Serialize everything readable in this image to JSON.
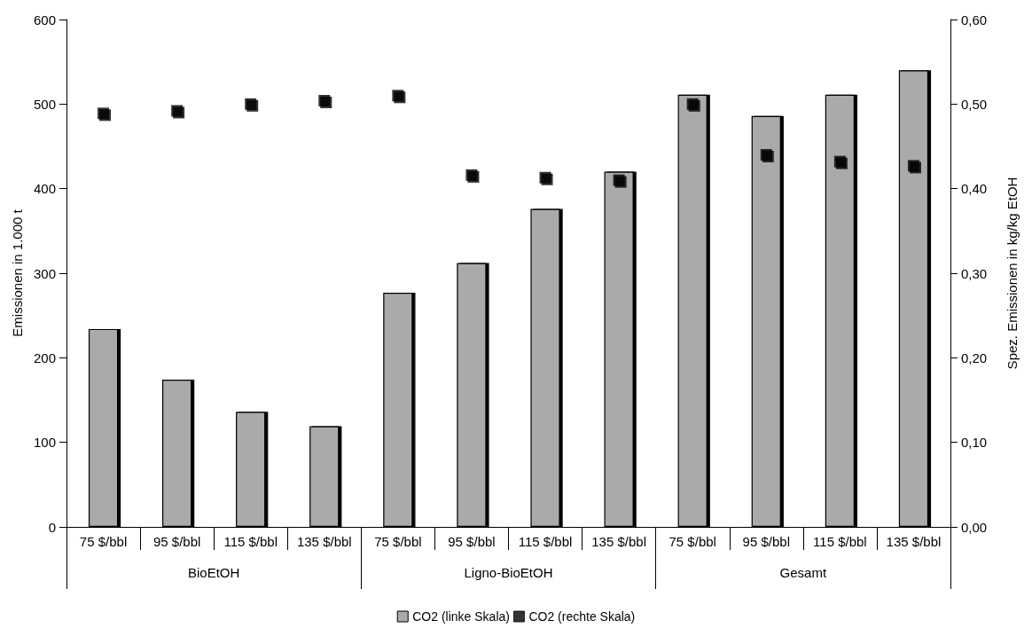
{
  "chart_data": {
    "type": "bar",
    "categories": [
      "75 $/bbl",
      "95 $/bbl",
      "115 $/bbl",
      "135 $/bbl",
      "75 $/bbl",
      "95 $/bbl",
      "115 $/bbl",
      "135 $/bbl",
      "75 $/bbl",
      "95 $/bbl",
      "115 $/bbl",
      "135 $/bbl"
    ],
    "annotations": [
      "BioEtOH",
      "Ligno-BioEtOH",
      "Gesamt"
    ],
    "ylabel": "Emissionen in 1.000 t",
    "y2label": "Spez. Emissionen in kg/kg EtOH",
    "series": [
      {
        "name": "CO2 (linke Skala)",
        "color": "#aaaaaa",
        "values": [
          234,
          174,
          136,
          119,
          277,
          312,
          376,
          420,
          511,
          486,
          511,
          540
        ]
      },
      {
        "name": "CO2 (rechte Skala)",
        "type": "scatter",
        "axis": "y2",
        "color": "#000000",
        "values": [
          0.489,
          0.492,
          0.5,
          0.504,
          0.51,
          0.416,
          0.413,
          0.41,
          0.5,
          0.44,
          0.432,
          0.427
        ]
      }
    ],
    "ylim": [
      0,
      600
    ],
    "yticks": [
      0,
      100,
      200,
      300,
      400,
      500,
      600
    ],
    "y2lim": [
      0,
      0.6
    ],
    "y2ticks": [
      {
        "value": 0,
        "label": "0,00"
      },
      {
        "value": 0.1,
        "label": "0,10"
      },
      {
        "value": 0.2,
        "label": "0,20"
      },
      {
        "value": 0.3,
        "label": "0,30"
      },
      {
        "value": 0.4,
        "label": "0,40"
      },
      {
        "value": 0.5,
        "label": "0,50"
      },
      {
        "value": 0.6,
        "label": "0,60"
      }
    ],
    "marker": "square",
    "grid": false,
    "legend": "bottom"
  }
}
